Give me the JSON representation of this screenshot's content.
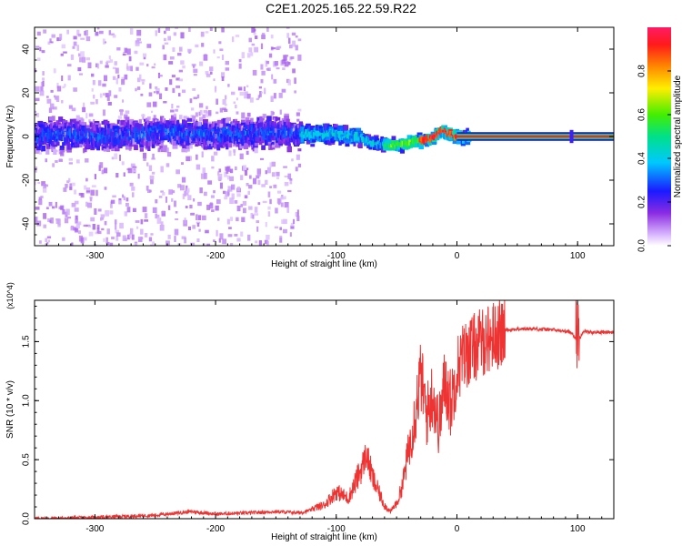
{
  "title": "C2E1.2025.165.22.59.R22",
  "chart_data": [
    {
      "type": "heatmap",
      "xlabel": "Height of straight line (km)",
      "ylabel": "Frequency (Hz)",
      "xlim": [
        -350,
        130
      ],
      "ylim": [
        -50,
        50
      ],
      "x_ticks": [
        -300,
        -200,
        -100,
        0,
        100
      ],
      "y_ticks": [
        -40,
        -20,
        0,
        20,
        40
      ],
      "colorbar": {
        "label": "Normalized spectral amplitude",
        "range": [
          0,
          1
        ],
        "ticks": [
          "0.0",
          "0.2",
          "0.4",
          "0.6",
          "0.8"
        ]
      },
      "trace": {
        "x": [
          -350,
          -320,
          -300,
          -270,
          -240,
          -210,
          -180,
          -150,
          -120,
          -100,
          -80,
          -70,
          -60,
          -50,
          -40,
          -30,
          -20,
          -12,
          -5,
          0,
          20,
          60,
          100,
          130
        ],
        "y": [
          0,
          1,
          0,
          1,
          2,
          1,
          1,
          2,
          1,
          1,
          0,
          -3,
          -4,
          -4,
          -3,
          -2,
          -1,
          3,
          1,
          0,
          0,
          0,
          0,
          0
        ]
      },
      "steady_line_start_x": 0
    },
    {
      "type": "line",
      "xlabel": "Height of straight line (km)",
      "ylabel": "SNR (10 * v/v)",
      "ylabel_multiplier": "(x10^4)",
      "xlim": [
        -350,
        130
      ],
      "ylim": [
        0,
        1.85
      ],
      "x_ticks": [
        -300,
        -200,
        -100,
        0,
        100
      ],
      "y_ticks": [
        "0.0",
        "0.5",
        "1.0",
        "1.5"
      ],
      "line_color": "#ee3333",
      "series": [
        {
          "x": [
            -350,
            -300,
            -250,
            -220,
            -200,
            -170,
            -150,
            -130,
            -110,
            -100,
            -90,
            -80,
            -75,
            -70,
            -65,
            -60,
            -55,
            -50,
            -45,
            -40,
            -35,
            -30,
            -25,
            -20,
            -15,
            -10,
            -5,
            0,
            5,
            10,
            20,
            30,
            40,
            60,
            80,
            95,
            100,
            105,
            110,
            130
          ],
          "y": [
            0.0,
            0.01,
            0.03,
            0.06,
            0.04,
            0.05,
            0.06,
            0.05,
            0.1,
            0.2,
            0.15,
            0.35,
            0.5,
            0.3,
            0.2,
            0.1,
            0.05,
            0.12,
            0.3,
            0.6,
            0.9,
            1.25,
            0.9,
            1.1,
            0.8,
            1.2,
            1.0,
            1.3,
            1.4,
            1.45,
            1.52,
            1.58,
            1.6,
            1.61,
            1.6,
            1.58,
            1.5,
            1.59,
            1.58,
            1.58
          ]
        }
      ]
    }
  ]
}
